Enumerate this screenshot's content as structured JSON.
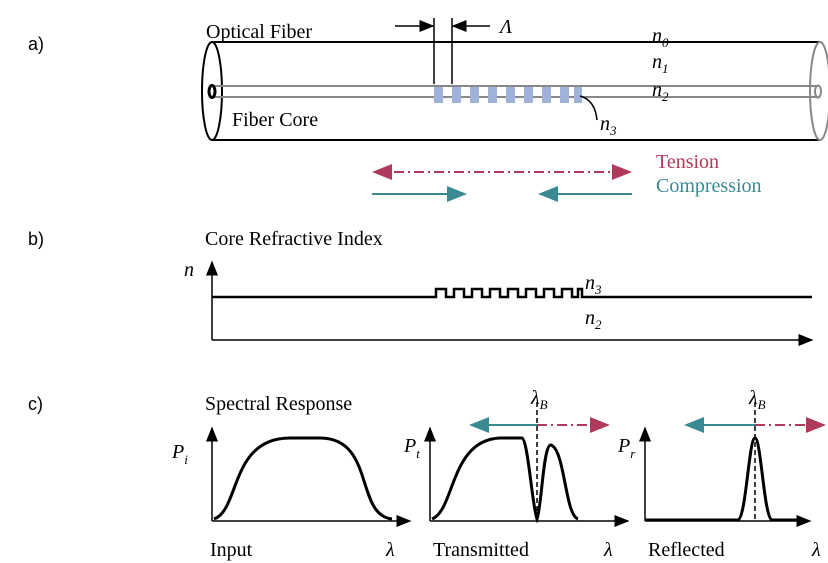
{
  "panel_a": {
    "label": "a)",
    "fiber_label": "Optical Fiber",
    "period": "Λ",
    "indices": [
      {
        "base": "n",
        "sub": "0"
      },
      {
        "base": "n",
        "sub": "1"
      },
      {
        "base": "n",
        "sub": "2"
      },
      {
        "base": "n",
        "sub": "3"
      }
    ],
    "core_label": "Fiber Core",
    "tension": "Tension",
    "compression": "Compression"
  },
  "panel_b": {
    "label": "b)",
    "title": "Core Refractive Index",
    "axis": "n",
    "upper": {
      "base": "n",
      "sub": "3"
    },
    "lower": {
      "base": "n",
      "sub": "2"
    }
  },
  "panel_c": {
    "label": "c)",
    "title": "Spectral Response",
    "plots": [
      {
        "ylabel": {
          "base": "P",
          "sub": "i"
        },
        "xlabel": "Input",
        "xaxis": "λ"
      },
      {
        "ylabel": {
          "base": "P",
          "sub": "t"
        },
        "xlabel": "Transmitted",
        "xaxis": "λ",
        "marker": {
          "base": "λ",
          "sub": "B"
        }
      },
      {
        "ylabel": {
          "base": "P",
          "sub": "r"
        },
        "xlabel": "Reflected",
        "xaxis": "λ",
        "marker": {
          "base": "λ",
          "sub": "B"
        }
      }
    ]
  }
}
